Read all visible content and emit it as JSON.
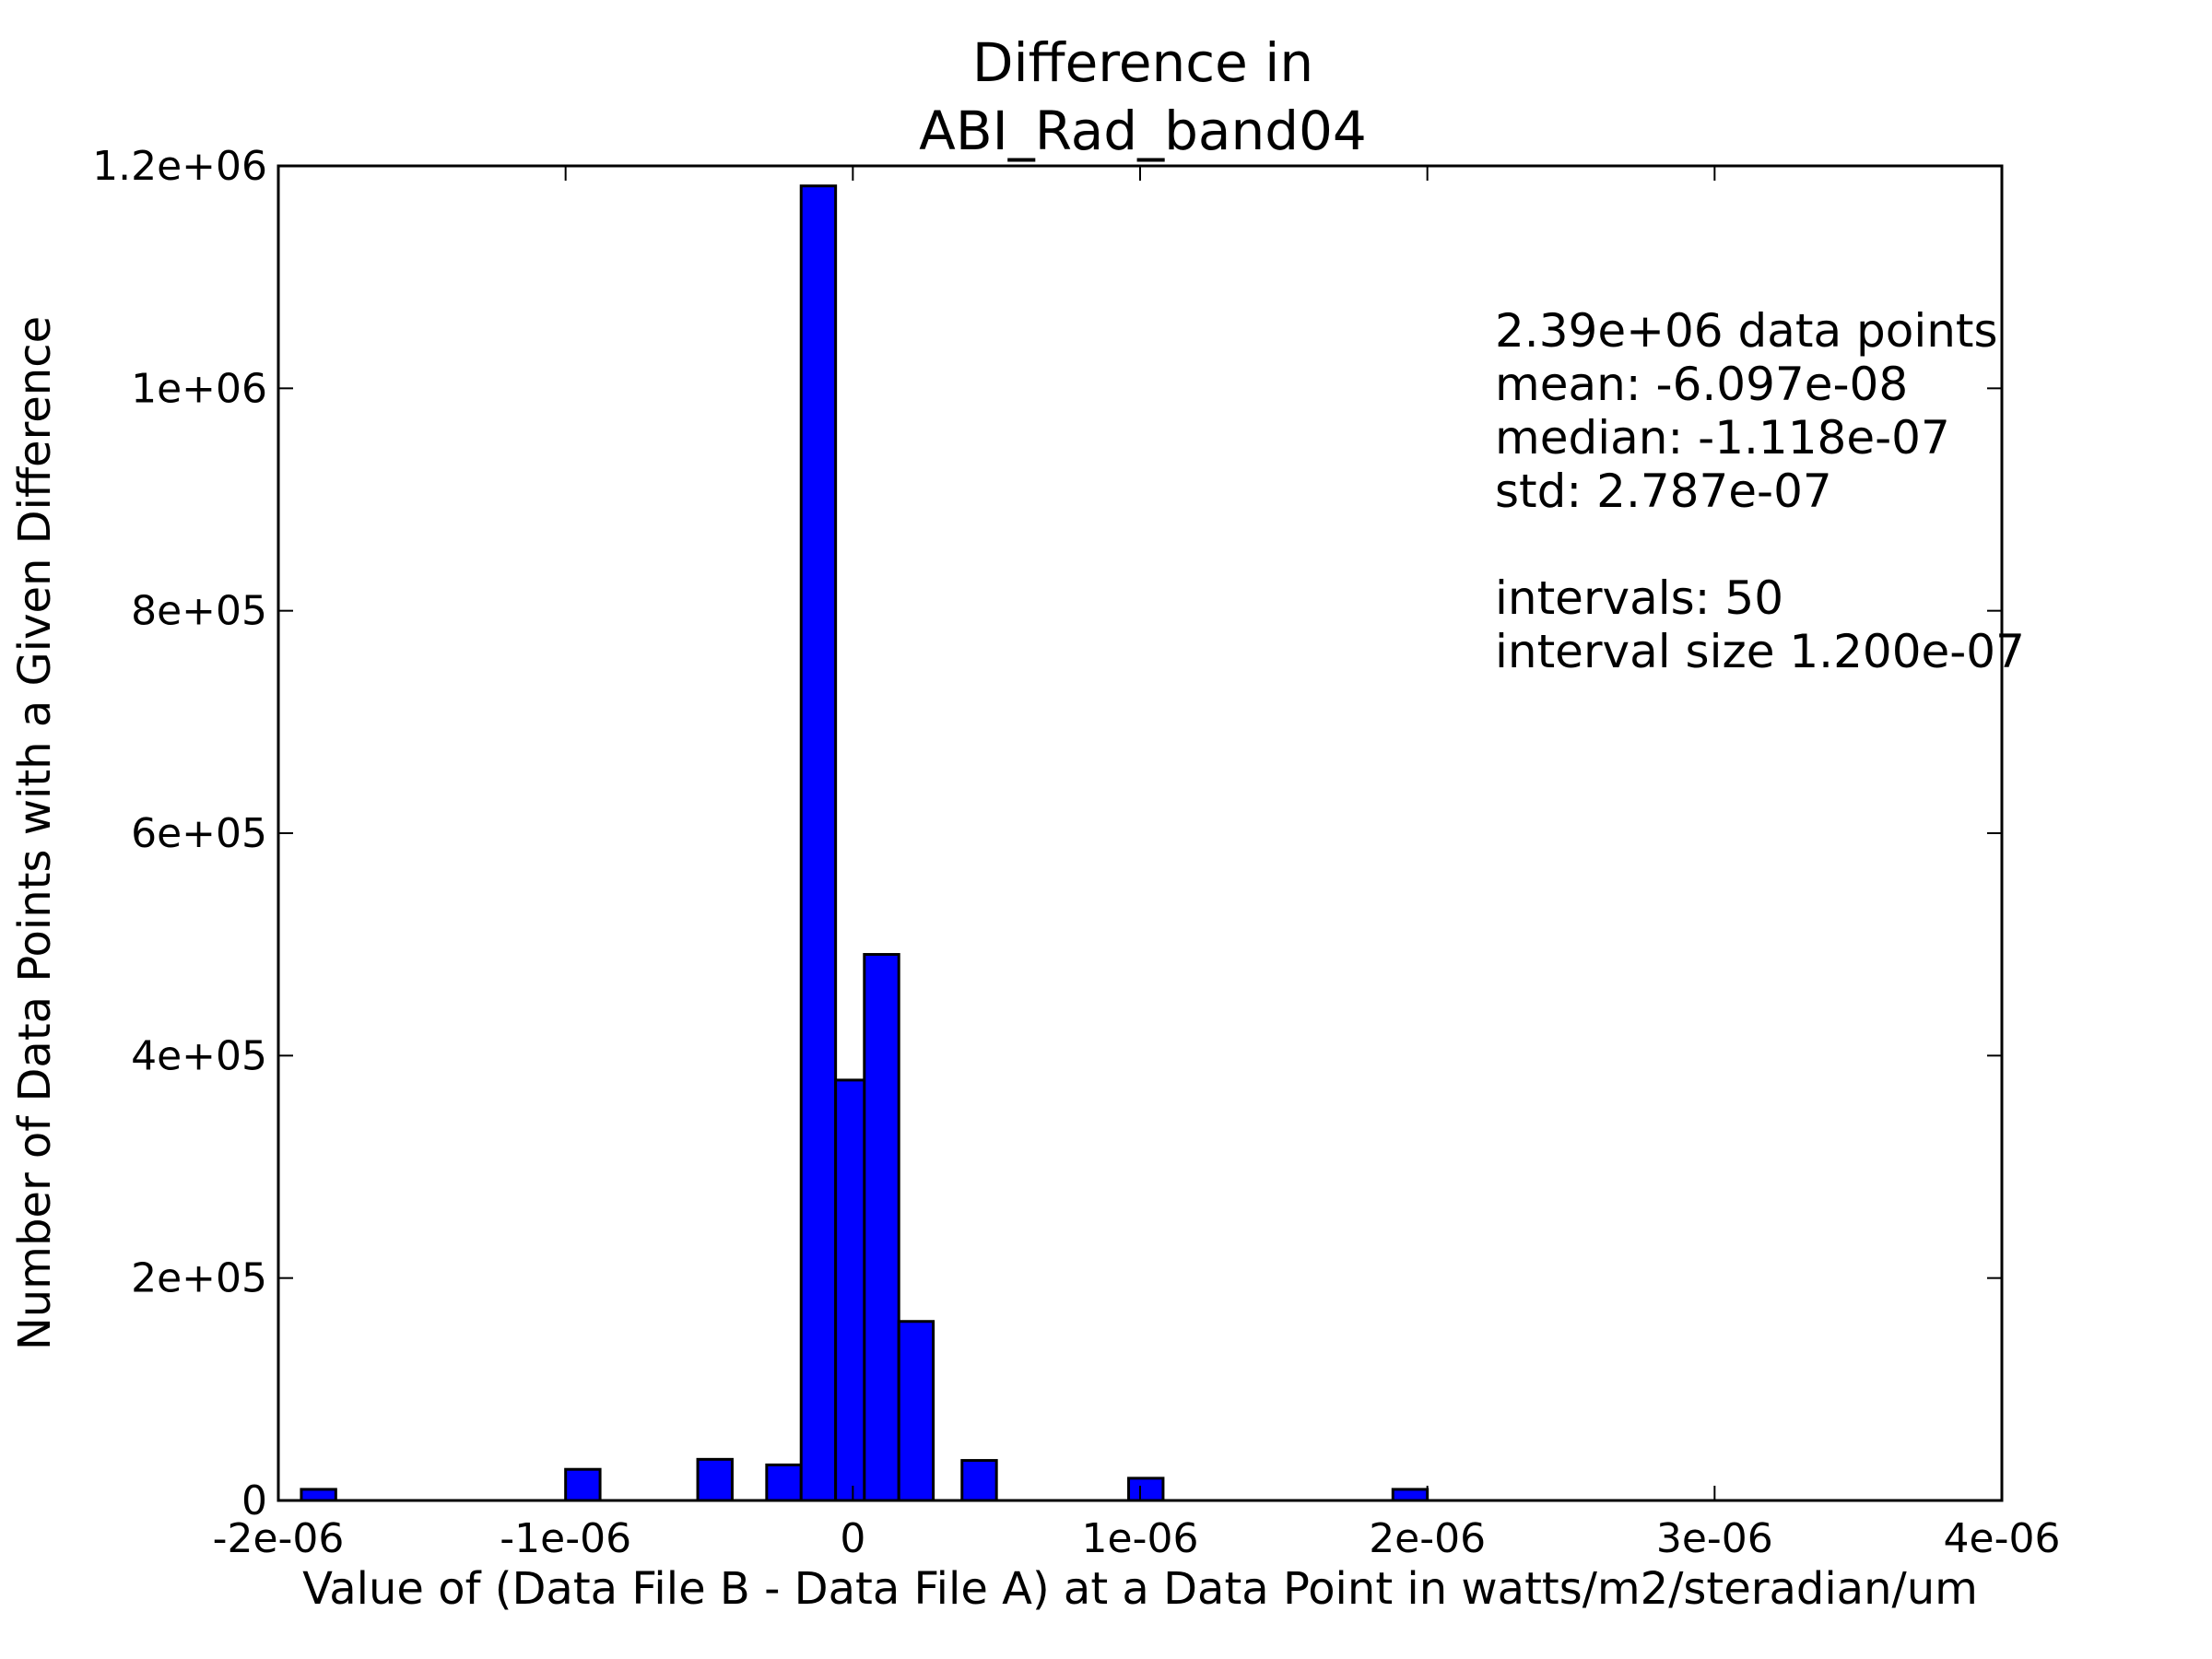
{
  "chart_data": {
    "type": "bar",
    "title": [
      "Difference in",
      "ABI_Rad_band04"
    ],
    "xlabel": "Value of (Data File B - Data File A) at a Data Point in watts/m2/steradian/um",
    "ylabel": "Number of Data Points with a Given Difference",
    "xlim": [
      -2e-06,
      4e-06
    ],
    "ylim": [
      0,
      1200000
    ],
    "grid": false,
    "bar_color": "#0000ff",
    "bin_width": 1.2e-07,
    "x_ticks": [
      {
        "value": -2e-06,
        "label": "-2e-06"
      },
      {
        "value": -1e-06,
        "label": "-1e-06"
      },
      {
        "value": 0,
        "label": "0"
      },
      {
        "value": 1e-06,
        "label": "1e-06"
      },
      {
        "value": 2e-06,
        "label": "2e-06"
      },
      {
        "value": 3e-06,
        "label": "3e-06"
      },
      {
        "value": 4e-06,
        "label": "4e-06"
      }
    ],
    "y_ticks": [
      {
        "value": 0,
        "label": "0"
      },
      {
        "value": 200000,
        "label": "2e+05"
      },
      {
        "value": 400000,
        "label": "4e+05"
      },
      {
        "value": 600000,
        "label": "6e+05"
      },
      {
        "value": 800000,
        "label": "8e+05"
      },
      {
        "value": 1000000,
        "label": "1e+06"
      },
      {
        "value": 1200000,
        "label": "1.2e+06"
      }
    ],
    "bins": [
      {
        "x_start": -1.92e-06,
        "count": 10000
      },
      {
        "x_start": -1e-06,
        "count": 28000
      },
      {
        "x_start": -5.4e-07,
        "count": 37000
      },
      {
        "x_start": -3e-07,
        "count": 32000
      },
      {
        "x_start": -1.8e-07,
        "count": 1182000
      },
      {
        "x_start": -6e-08,
        "count": 378000
      },
      {
        "x_start": 4e-08,
        "count": 491000
      },
      {
        "x_start": 1.6e-07,
        "count": 161000
      },
      {
        "x_start": 3.8e-07,
        "count": 36000
      },
      {
        "x_start": 9.6e-07,
        "count": 20000
      },
      {
        "x_start": 1.88e-06,
        "count": 10000
      }
    ],
    "stats_text": [
      "2.39e+06 data points",
      "mean: -6.097e-08",
      "median: -1.118e-07",
      "std: 2.787e-07",
      "",
      "intervals: 50",
      "interval size 1.200e-07"
    ]
  }
}
